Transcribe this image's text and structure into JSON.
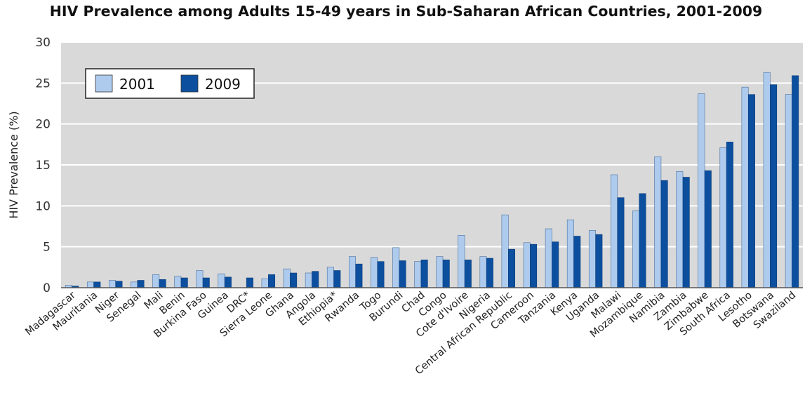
{
  "chart_data": {
    "type": "bar",
    "title": "HIV Prevalence among Adults 15-49 years in Sub-Saharan African Countries, 2001-2009",
    "xlabel": "",
    "ylabel": "HIV Prevalence (%)",
    "ylim": [
      0,
      30
    ],
    "yticks": [
      0,
      5,
      10,
      15,
      20,
      25,
      30
    ],
    "grid": true,
    "legend_position": "top-left",
    "categories": [
      "Madagascar",
      "Mauritania",
      "Niger",
      "Senegal",
      "Mali",
      "Benin",
      "Burkina Faso",
      "Guinea",
      "DRC*",
      "Sierra Leone",
      "Ghana",
      "Angola",
      "Ethiopia*",
      "Rwanda",
      "Togo",
      "Burundi",
      "Chad",
      "Congo",
      "Cote d'Ivoire",
      "Nigeria",
      "Central African Republic",
      "Cameroon",
      "Tanzania",
      "Kenya",
      "Uganda",
      "Malawi",
      "Mozambique",
      "Namibia",
      "Zambia",
      "Zimbabwe",
      "South Africa",
      "Lesotho",
      "Botswana",
      "Swaziland"
    ],
    "series": [
      {
        "name": "2001",
        "color": "#aecbee",
        "values": [
          0.3,
          0.7,
          0.9,
          0.7,
          1.6,
          1.4,
          2.1,
          1.7,
          null,
          1.1,
          2.3,
          1.8,
          2.5,
          3.8,
          3.7,
          4.9,
          3.2,
          3.8,
          6.4,
          3.8,
          8.9,
          5.5,
          7.2,
          8.3,
          7.0,
          13.8,
          9.4,
          16.0,
          14.2,
          23.7,
          17.1,
          24.5,
          26.3,
          23.6
        ]
      },
      {
        "name": "2009",
        "color": "#0d4f9f",
        "values": [
          0.2,
          0.7,
          0.8,
          0.9,
          1.0,
          1.2,
          1.2,
          1.3,
          1.2,
          1.6,
          1.8,
          2.0,
          2.1,
          2.9,
          3.2,
          3.3,
          3.4,
          3.4,
          3.4,
          3.6,
          4.7,
          5.3,
          5.6,
          6.3,
          6.5,
          11.0,
          11.5,
          13.1,
          13.5,
          14.3,
          17.8,
          23.6,
          24.8,
          25.9
        ]
      }
    ]
  }
}
